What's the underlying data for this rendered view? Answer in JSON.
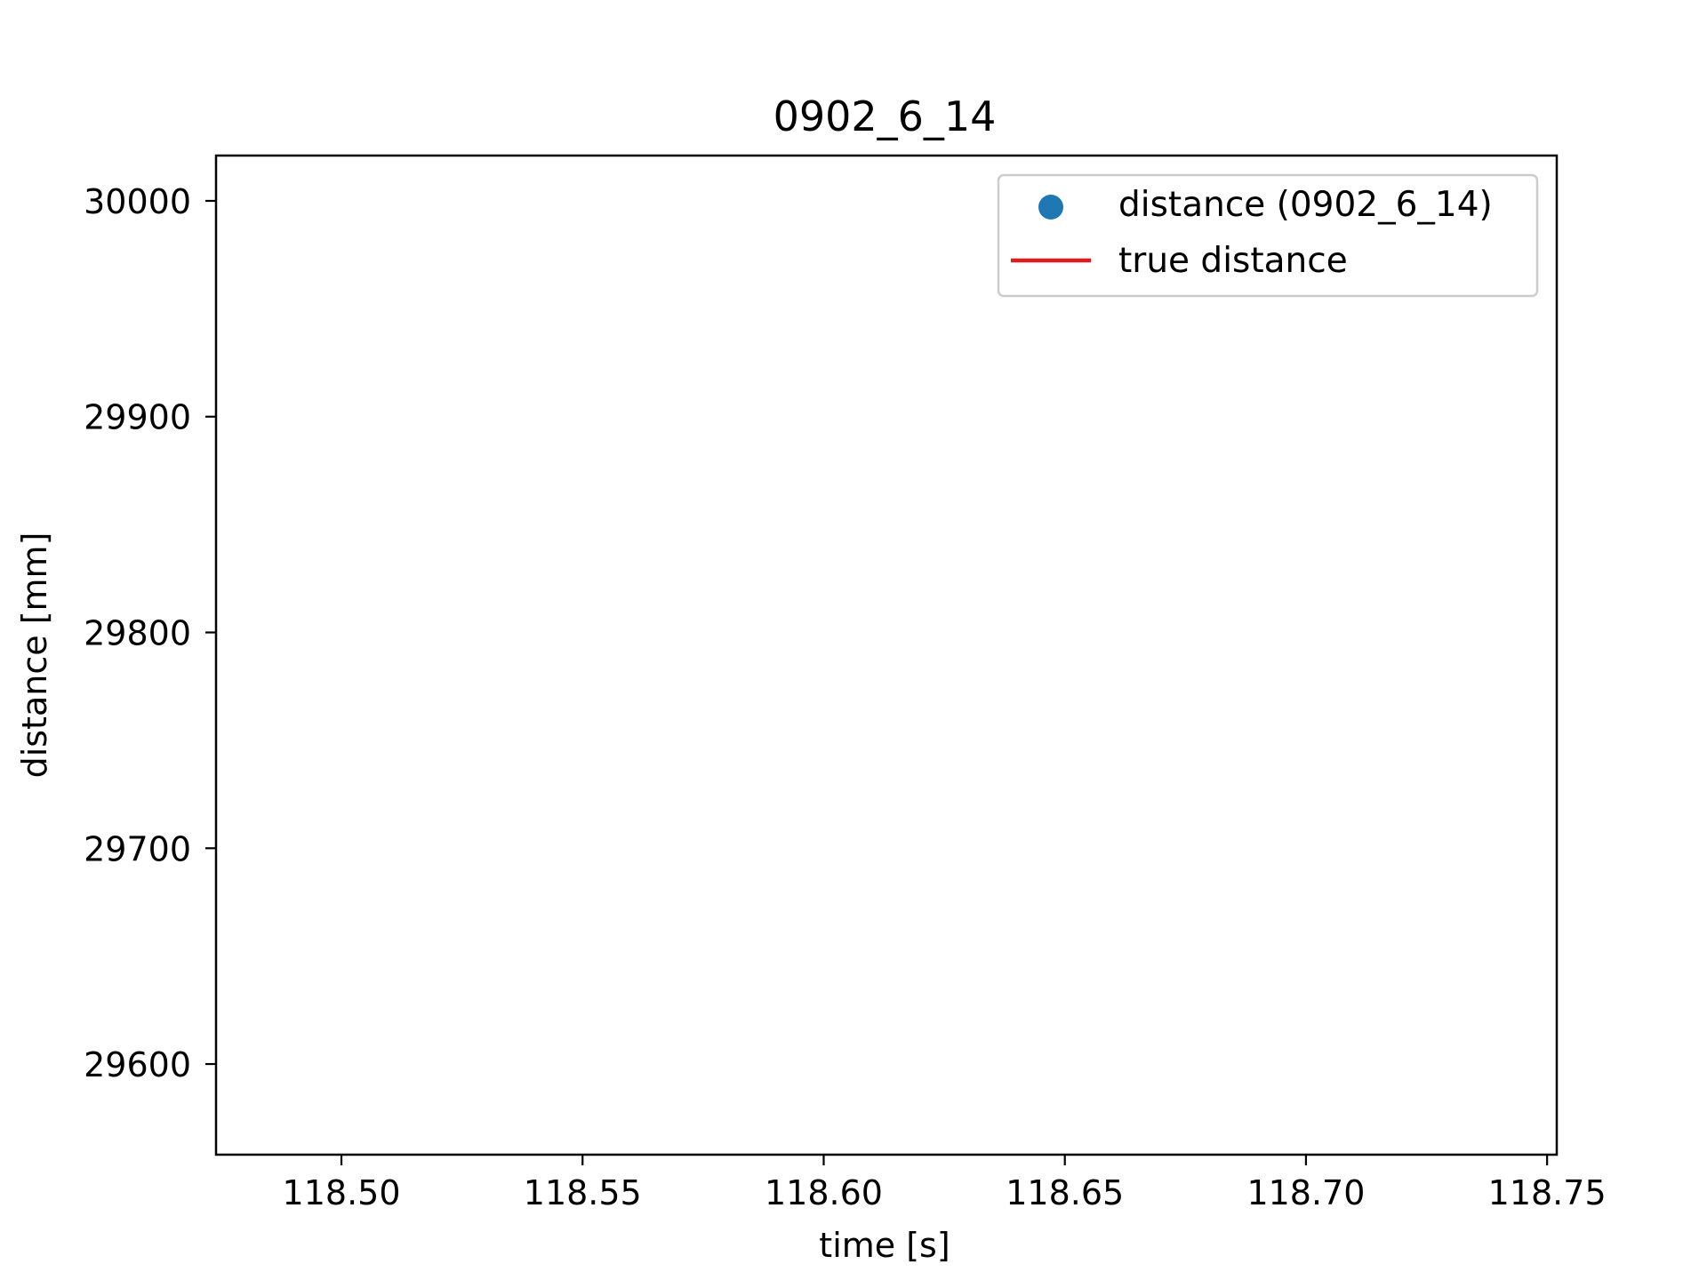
{
  "chart_data": {
    "type": "scatter",
    "title": "0902_6_14",
    "xlabel": "time [s]",
    "ylabel": "distance [mm]",
    "xlim": [
      118.474,
      118.752
    ],
    "ylim": [
      29558,
      30021
    ],
    "xticks": [
      118.5,
      118.55,
      118.6,
      118.65,
      118.7,
      118.75
    ],
    "xtick_labels": [
      "118.50",
      "118.55",
      "118.60",
      "118.65",
      "118.70",
      "118.75"
    ],
    "yticks": [
      29600,
      29700,
      29800,
      29900,
      30000
    ],
    "ytick_labels": [
      "29600",
      "29700",
      "29800",
      "29900",
      "30000"
    ],
    "grid": false,
    "legend_position": "top-right",
    "series": [
      {
        "name": "distance (0902_6_14)",
        "kind": "scatter",
        "color": "#1f77b4",
        "points": []
      },
      {
        "name": "true distance",
        "kind": "line",
        "color": "#e31a1c",
        "points": []
      }
    ]
  }
}
